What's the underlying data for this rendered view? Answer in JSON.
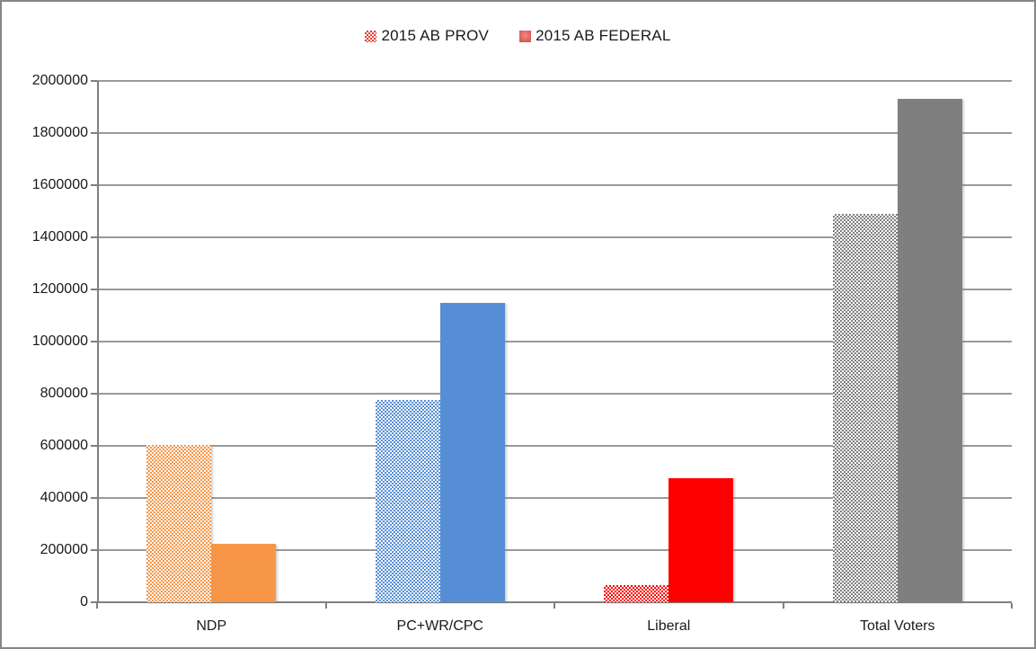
{
  "frame": {
    "border_color": "#868686",
    "background": "#FFFFFF"
  },
  "legend": {
    "position": "top-center",
    "items": [
      {
        "label": "2015 AB PROV",
        "fill": "dotted-pattern",
        "color": "#E03C31"
      },
      {
        "label": "2015 AB FEDERAL",
        "fill": "solid",
        "color": "#DB5A55"
      }
    ]
  },
  "chart_data": {
    "type": "bar",
    "title": "",
    "xlabel": "",
    "ylabel": "",
    "categories": [
      "NDP",
      "PC+WR/CPC",
      "Liberal",
      "Total Voters"
    ],
    "series": [
      {
        "name": "2015 AB PROV",
        "fill": "dotted-pattern",
        "values": [
          605000,
          775000,
          65000,
          1490000
        ]
      },
      {
        "name": "2015 AB FEDERAL",
        "fill": "solid",
        "values": [
          225000,
          1150000,
          475000,
          1930000
        ]
      }
    ],
    "category_colors": [
      "#F79646",
      "#558ED5",
      "#FF0000",
      "#7F7F7F"
    ],
    "ylim": [
      0,
      2000000
    ],
    "ytick_step": 200000,
    "ytick_labels_top_to_bottom": [
      "2000000",
      "1800000",
      "1600000",
      "1400000",
      "1200000",
      "1000000",
      "800000",
      "600000",
      "400000",
      "200000",
      "0"
    ],
    "grid": true,
    "legend_position": "top-center",
    "colors": {
      "gridline": "#9A9A9A",
      "axis": "#7F7F7F",
      "tick": "#7F7F7F",
      "text": "#1A1A1A",
      "pattern_background": "#FFFFFF"
    }
  }
}
